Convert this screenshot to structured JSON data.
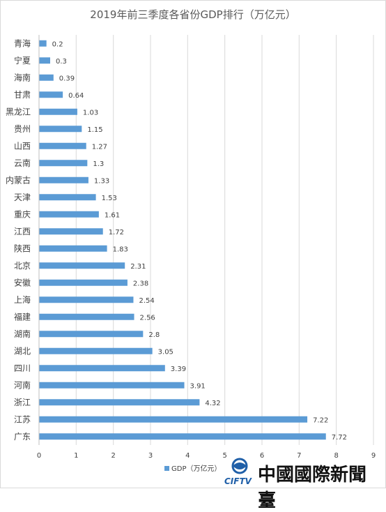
{
  "chart_data": {
    "type": "bar",
    "orientation": "horizontal",
    "title": "2019年前三季度各省份GDP排行（万亿元）",
    "categories": [
      "青海",
      "宁夏",
      "海南",
      "甘肃",
      "黑龙江",
      "贵州",
      "山西",
      "云南",
      "内蒙古",
      "天津",
      "重庆",
      "江西",
      "陕西",
      "北京",
      "安徽",
      "上海",
      "福建",
      "湖南",
      "湖北",
      "四川",
      "河南",
      "浙江",
      "江苏",
      "广东"
    ],
    "series": [
      {
        "name": "GDP（万亿元）",
        "values": [
          0.2,
          0.3,
          0.39,
          0.64,
          1.03,
          1.15,
          1.27,
          1.3,
          1.33,
          1.53,
          1.61,
          1.72,
          1.83,
          2.31,
          2.38,
          2.54,
          2.56,
          2.8,
          3.05,
          3.39,
          3.91,
          4.32,
          7.22,
          7.72
        ],
        "color": "#5b9bd5"
      }
    ],
    "xlim": [
      0,
      9
    ],
    "xticks": [
      "0",
      "1",
      "2",
      "3",
      "4",
      "5",
      "6",
      "7",
      "8",
      "9"
    ],
    "grid": "vertical",
    "legend": "bottom",
    "data_labels": true
  },
  "watermark": {
    "brand_text": "CIFTV",
    "name": "中國國際新聞臺"
  },
  "colors": {
    "bar": "#5b9bd5",
    "grid": "#d9d9d9",
    "text": "#404040",
    "title": "#595959"
  }
}
